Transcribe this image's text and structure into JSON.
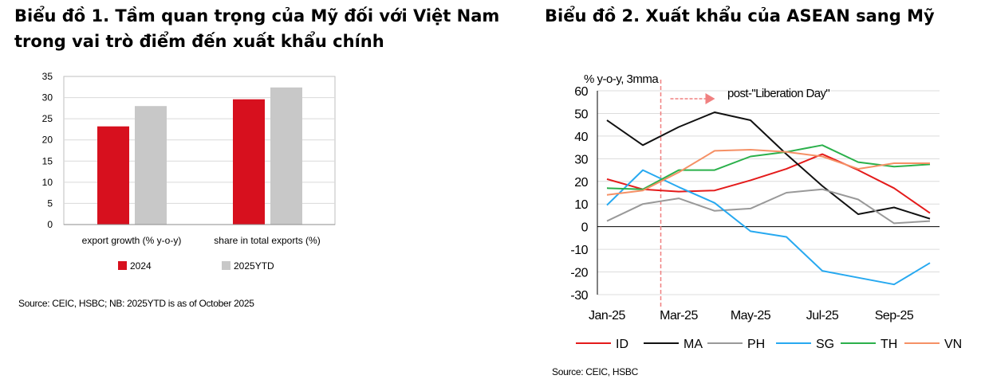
{
  "left": {
    "title": "Biểu đồ 1. Tầm quan trọng của Mỹ đối với Việt Nam trong vai trò điểm đến xuất khẩu chính",
    "source": "Source: CEIC, HSBC; NB: 2025YTD is as of October 2025"
  },
  "right": {
    "title": "Biểu đồ 2. Xuất khẩu của ASEAN sang Mỹ",
    "source": "Source: CEIC, HSBC"
  },
  "chart_data": [
    {
      "type": "bar",
      "categories": [
        "export growth (% y-o-y)",
        "share in total exports (%)"
      ],
      "series": [
        {
          "name": "2024",
          "values": [
            23.2,
            29.6
          ],
          "color": "#d7101e"
        },
        {
          "name": "2025YTD",
          "values": [
            28.0,
            32.4
          ],
          "color": "#c8c8c8"
        }
      ],
      "ylim": [
        0,
        35
      ],
      "yticks": [
        0,
        5,
        10,
        15,
        20,
        25,
        30,
        35
      ],
      "grid": true,
      "legend": "bottom"
    },
    {
      "type": "line",
      "ylabel": "% y-o-y, 3mma",
      "x": [
        "Jan-25",
        "Feb-25",
        "Mar-25",
        "Apr-25",
        "May-25",
        "Jun-25",
        "Jul-25",
        "Aug-25",
        "Sep-25",
        "Oct-25"
      ],
      "xtick_labels": [
        "Jan-25",
        "Mar-25",
        "May-25",
        "Jul-25",
        "Sep-25"
      ],
      "ylim": [
        -30,
        60
      ],
      "yticks": [
        -30,
        -20,
        -10,
        0,
        10,
        20,
        30,
        40,
        50,
        60
      ],
      "annotation": "post-\"Liberation Day\"",
      "marker_after": "Feb-25",
      "series": [
        {
          "name": "ID",
          "color": "#e41b1b",
          "values": [
            21,
            16.5,
            15.5,
            16,
            20.5,
            25.5,
            32,
            25,
            17,
            6
          ]
        },
        {
          "name": "MA",
          "color": "#111111",
          "values": [
            47,
            36,
            44,
            50.5,
            47,
            32,
            18,
            5.5,
            8.5,
            3.5
          ]
        },
        {
          "name": "PH",
          "color": "#999999",
          "values": [
            2.5,
            10,
            12.5,
            7,
            8,
            15,
            16.5,
            12,
            1.5,
            2.5
          ]
        },
        {
          "name": "SG",
          "color": "#27a9f0",
          "values": [
            9.5,
            25,
            17.5,
            10.5,
            -2,
            -4.5,
            -19.5,
            -22.5,
            -25.5,
            -16
          ]
        },
        {
          "name": "TH",
          "color": "#2bb04b",
          "values": [
            17,
            16.5,
            25,
            25,
            31,
            33,
            36,
            28.5,
            26.5,
            27.5
          ]
        },
        {
          "name": "VN",
          "color": "#f59065",
          "values": [
            14,
            16,
            24,
            33.5,
            34,
            33,
            31,
            25.5,
            28,
            28
          ]
        }
      ],
      "grid": true,
      "legend": "bottom"
    }
  ]
}
